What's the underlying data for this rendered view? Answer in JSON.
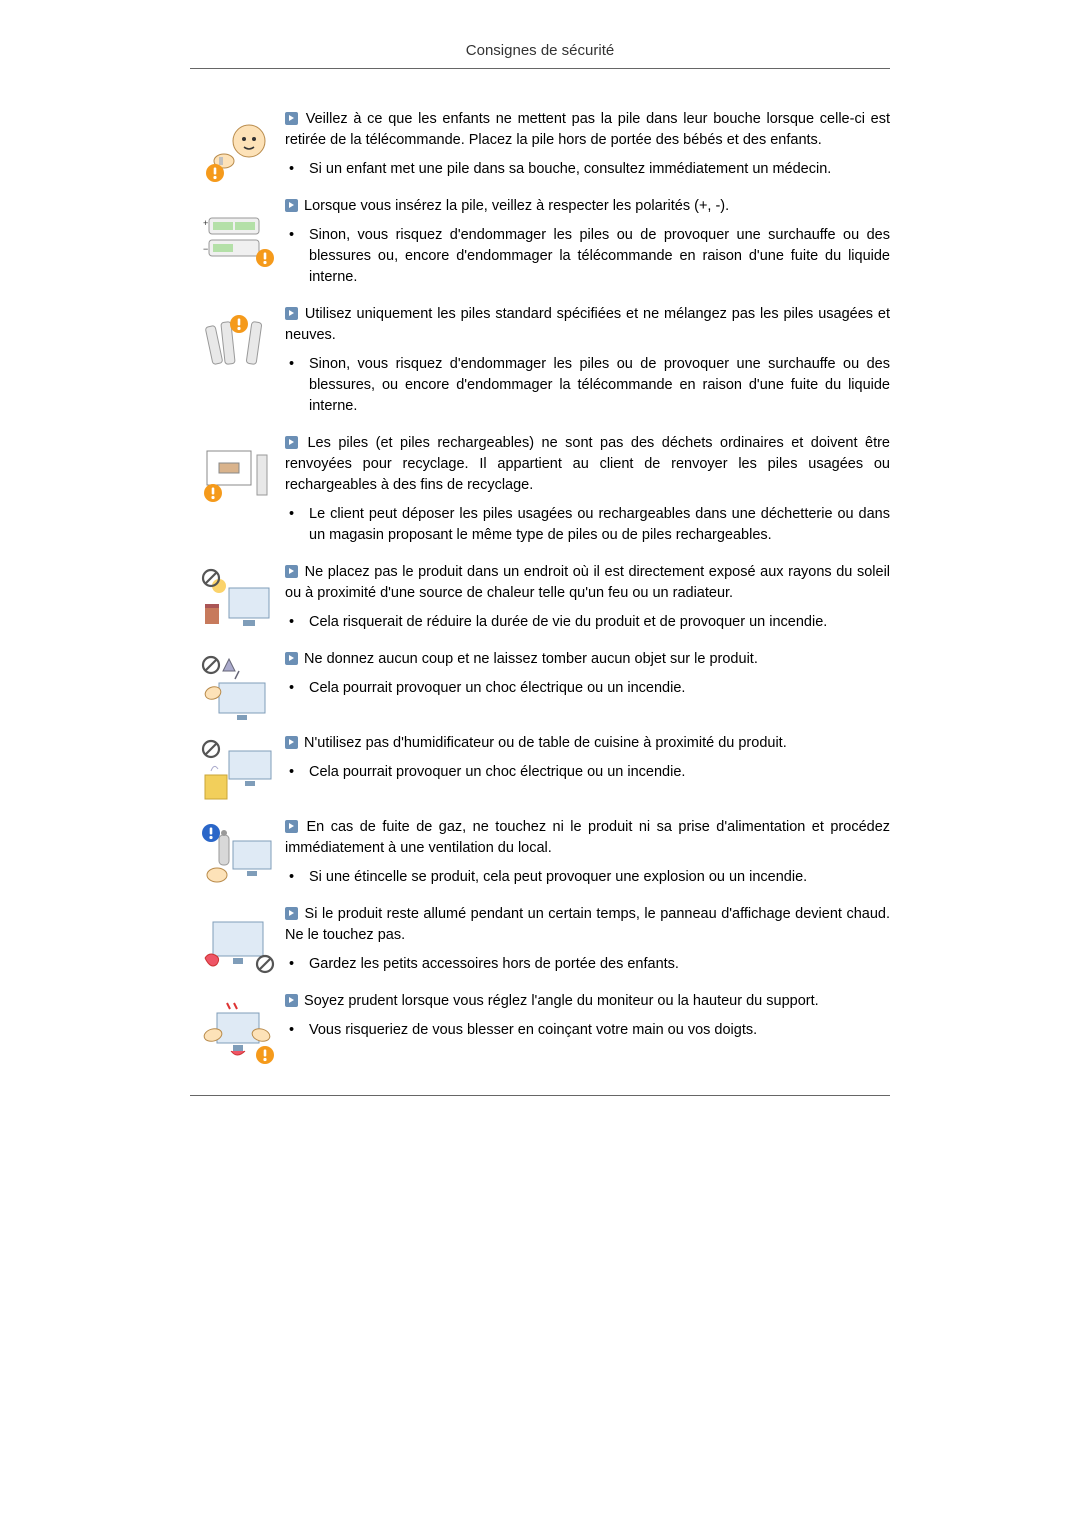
{
  "header": "Consignes de sécurité",
  "colors": {
    "arrow_bg": "#6b8fb5",
    "prohibit_red": "#d83a3a",
    "warn_blue": "#2a66c8",
    "warn_orange": "#f59a1b",
    "body_text": "#000000",
    "rule": "#666666"
  },
  "items": [
    {
      "icon": "child-battery",
      "lead": "Veillez à ce que les enfants ne mettent pas la pile dans leur bouche lorsque celle-ci est retirée de la télécommande. Placez la pile hors de portée des bébés et des enfants.",
      "bullets": [
        "Si un enfant met une pile dans sa bouche, consultez immédiatement un médecin."
      ]
    },
    {
      "icon": "battery-polarity",
      "lead": "Lorsque vous insérez la pile, veillez à respecter les polarités (+, -).",
      "bullets": [
        "Sinon, vous risquez d'endommager les piles ou de provoquer une surchauffe ou des blessures ou, encore d'endommager la télécommande en raison d'une fuite du liquide interne."
      ]
    },
    {
      "icon": "mixed-batteries",
      "lead": "Utilisez uniquement les piles standard spécifiées et ne mélangez pas les piles usagées et neuves.",
      "bullets": [
        "Sinon, vous risquez d'endommager les piles ou de provoquer une surchauffe ou des blessures, ou encore d'endommager la télécommande en raison d'une fuite du liquide interne."
      ]
    },
    {
      "icon": "recycle-batteries",
      "lead": "Les piles (et piles rechargeables) ne sont pas des déchets ordinaires et doivent être renvoyées pour recyclage. Il appartient au client de renvoyer les piles usagées ou rechargeables à des fins de recyclage.",
      "bullets": [
        "Le client peut déposer les piles usagées ou rechargeables dans une déchetterie ou dans un magasin proposant le même type de piles ou de piles rechargeables."
      ]
    },
    {
      "icon": "no-sun-heat",
      "lead": "Ne placez pas le produit dans un endroit où il est directement exposé aux rayons du soleil ou à proximité d'une source de chaleur telle qu'un feu ou un radiateur.",
      "bullets": [
        "Cela risquerait de réduire la durée de vie du produit et de provoquer un incendie."
      ]
    },
    {
      "icon": "no-drop",
      "lead": "Ne donnez aucun coup et ne laissez tomber aucun objet sur le produit.",
      "bullets": [
        "Cela pourrait provoquer un choc électrique ou un incendie."
      ]
    },
    {
      "icon": "no-humidifier",
      "lead": "N'utilisez pas d'humidificateur ou de table de cuisine à proximité du produit.",
      "bullets": [
        "Cela pourrait provoquer un choc électrique ou un incendie."
      ]
    },
    {
      "icon": "gas-leak",
      "lead": "En cas de fuite de gaz, ne touchez ni le produit ni sa prise d'alimentation et procédez immédiatement à une ventilation du local.",
      "bullets": [
        "Si une étincelle se produit, cela peut provoquer une explosion ou un incendie."
      ]
    },
    {
      "icon": "hot-panel",
      "lead": "Si le produit reste allumé pendant un certain temps, le panneau d'affichage devient chaud. Ne le touchez pas.",
      "bullets": [
        "Gardez les petits accessoires hors de portée des enfants."
      ]
    },
    {
      "icon": "adjust-angle",
      "lead": "Soyez prudent lorsque vous réglez l'angle du moniteur ou la hauteur du support.",
      "bullets": [
        "Vous risqueriez de vous blesser en coinçant votre main ou vos doigts."
      ]
    }
  ]
}
